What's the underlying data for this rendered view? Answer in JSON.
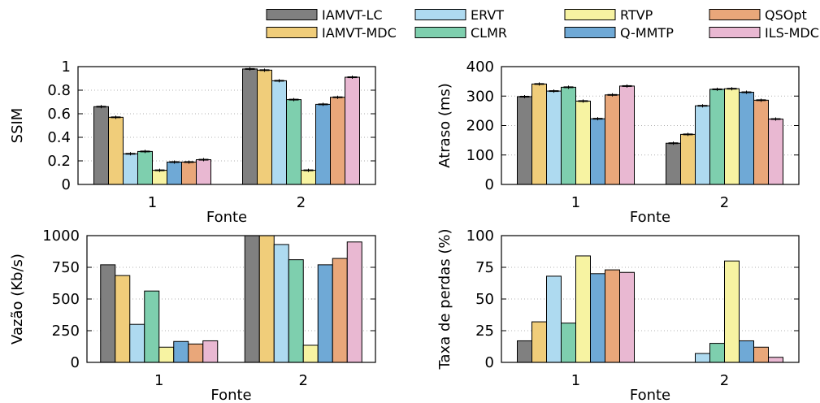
{
  "legend": {
    "placement": "top",
    "items": [
      {
        "label": "IAMVT-LC",
        "color": "#808080"
      },
      {
        "label": "IAMVT-MDC",
        "color": "#f0cd7a"
      },
      {
        "label": "ERVT",
        "color": "#aedaf0"
      },
      {
        "label": "CLMR",
        "color": "#7ecfae"
      },
      {
        "label": "RTVP",
        "color": "#f7f3a2"
      },
      {
        "label": "Q-MMTP",
        "color": "#6fa9d6"
      },
      {
        "label": "QSOpt",
        "color": "#e9a77a"
      },
      {
        "label": "ILS-MDC",
        "color": "#e9b8d2"
      }
    ]
  },
  "chart_data": [
    {
      "type": "bar",
      "xlabel": "Fonte",
      "ylabel": "SSIM",
      "categories": [
        "1",
        "2"
      ],
      "ylim": [
        0,
        1
      ],
      "yticks": [
        0,
        0.2,
        0.4,
        0.6,
        0.8,
        1
      ],
      "ytick_labels": [
        "0",
        "0.2",
        "0.4",
        "0.6",
        "0.8",
        "1"
      ],
      "grid": true,
      "error_bars": true,
      "series": [
        {
          "name": "IAMVT-LC",
          "values": [
            0.66,
            0.98
          ]
        },
        {
          "name": "IAMVT-MDC",
          "values": [
            0.57,
            0.97
          ]
        },
        {
          "name": "ERVT",
          "values": [
            0.26,
            0.88
          ]
        },
        {
          "name": "CLMR",
          "values": [
            0.28,
            0.72
          ]
        },
        {
          "name": "RTVP",
          "values": [
            0.12,
            0.12
          ]
        },
        {
          "name": "Q-MMTP",
          "values": [
            0.19,
            0.68
          ]
        },
        {
          "name": "QSOpt",
          "values": [
            0.19,
            0.74
          ]
        },
        {
          "name": "ILS-MDC",
          "values": [
            0.21,
            0.91
          ]
        }
      ]
    },
    {
      "type": "bar",
      "xlabel": "Fonte",
      "ylabel": "Atraso (ms)",
      "categories": [
        "1",
        "2"
      ],
      "ylim": [
        0,
        400
      ],
      "yticks": [
        0,
        100,
        200,
        300,
        400
      ],
      "ytick_labels": [
        "0",
        "100",
        "200",
        "300",
        "400"
      ],
      "grid": true,
      "error_bars": true,
      "series": [
        {
          "name": "IAMVT-LC",
          "values": [
            298,
            140
          ]
        },
        {
          "name": "IAMVT-MDC",
          "values": [
            341,
            170
          ]
        },
        {
          "name": "ERVT",
          "values": [
            317,
            267
          ]
        },
        {
          "name": "CLMR",
          "values": [
            330,
            323
          ]
        },
        {
          "name": "RTVP",
          "values": [
            283,
            325
          ]
        },
        {
          "name": "Q-MMTP",
          "values": [
            223,
            313
          ]
        },
        {
          "name": "QSOpt",
          "values": [
            304,
            286
          ]
        },
        {
          "name": "ILS-MDC",
          "values": [
            334,
            222
          ]
        }
      ]
    },
    {
      "type": "bar",
      "xlabel": "Fonte",
      "ylabel": "Vazão (Kb/s)",
      "categories": [
        "1",
        "2"
      ],
      "ylim": [
        0,
        1000
      ],
      "yticks": [
        0,
        250,
        500,
        750,
        1000
      ],
      "ytick_labels": [
        "0",
        "250",
        "500",
        "750",
        "1000"
      ],
      "grid": true,
      "error_bars": false,
      "series": [
        {
          "name": "IAMVT-LC",
          "values": [
            770,
            1000
          ]
        },
        {
          "name": "IAMVT-MDC",
          "values": [
            685,
            1000
          ]
        },
        {
          "name": "ERVT",
          "values": [
            300,
            930
          ]
        },
        {
          "name": "CLMR",
          "values": [
            563,
            810
          ]
        },
        {
          "name": "RTVP",
          "values": [
            120,
            135
          ]
        },
        {
          "name": "Q-MMTP",
          "values": [
            165,
            770
          ]
        },
        {
          "name": "QSOpt",
          "values": [
            145,
            820
          ]
        },
        {
          "name": "ILS-MDC",
          "values": [
            170,
            950
          ]
        }
      ]
    },
    {
      "type": "bar",
      "xlabel": "Fonte",
      "ylabel": "Taxa de perdas (%)",
      "categories": [
        "1",
        "2"
      ],
      "ylim": [
        0,
        100
      ],
      "yticks": [
        0,
        25,
        50,
        75,
        100
      ],
      "ytick_labels": [
        "0",
        "25",
        "50",
        "75",
        "100"
      ],
      "grid": true,
      "error_bars": false,
      "series": [
        {
          "name": "IAMVT-LC",
          "values": [
            17,
            0
          ]
        },
        {
          "name": "IAMVT-MDC",
          "values": [
            32,
            0
          ]
        },
        {
          "name": "ERVT",
          "values": [
            68,
            7
          ]
        },
        {
          "name": "CLMR",
          "values": [
            31,
            15
          ]
        },
        {
          "name": "RTVP",
          "values": [
            84,
            80
          ]
        },
        {
          "name": "Q-MMTP",
          "values": [
            70,
            17
          ]
        },
        {
          "name": "QSOpt",
          "values": [
            73,
            12
          ]
        },
        {
          "name": "ILS-MDC",
          "values": [
            71,
            4
          ]
        }
      ]
    }
  ]
}
